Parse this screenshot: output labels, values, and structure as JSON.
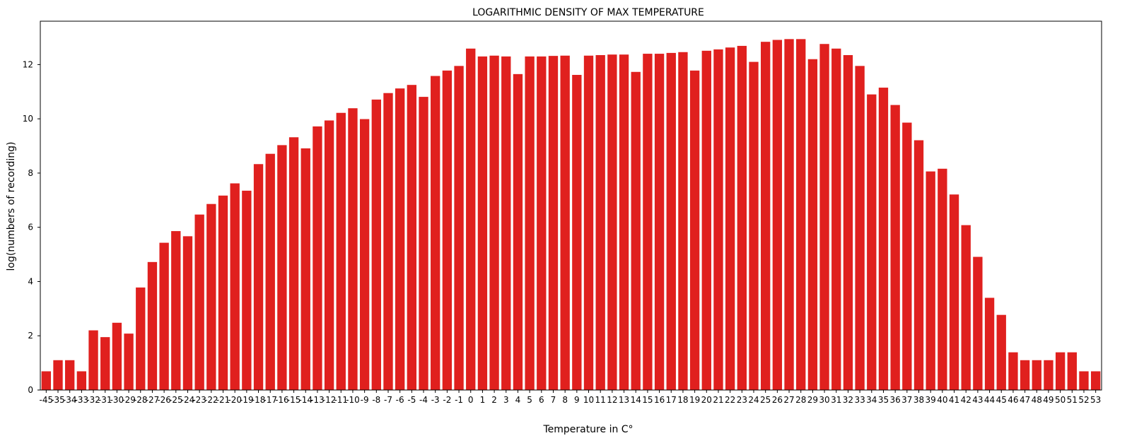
{
  "chart_data": {
    "type": "bar",
    "title": "LOGARITHMIC DENSITY OF MAX TEMPERATURE",
    "xlabel": "Temperature in C°",
    "ylabel": "log(numbers of recording)",
    "ylim": [
      0,
      13.6
    ],
    "yticks": [
      0,
      2,
      4,
      6,
      8,
      10,
      12
    ],
    "grid": false,
    "legend": "none",
    "bar_color": "#e0201e",
    "categories": [
      "-45",
      "-35",
      "-34",
      "-33",
      "-32",
      "-31",
      "-30",
      "-29",
      "-28",
      "-27",
      "-26",
      "-25",
      "-24",
      "-23",
      "-22",
      "-21",
      "-20",
      "-19",
      "-18",
      "-17",
      "-16",
      "-15",
      "-14",
      "-13",
      "-12",
      "-11",
      "-10",
      "-9",
      "-8",
      "-7",
      "-6",
      "-5",
      "-4",
      "-3",
      "-2",
      "-1",
      "0",
      "1",
      "2",
      "3",
      "4",
      "5",
      "6",
      "7",
      "8",
      "9",
      "10",
      "11",
      "12",
      "13",
      "14",
      "15",
      "16",
      "17",
      "18",
      "19",
      "20",
      "21",
      "22",
      "23",
      "24",
      "25",
      "26",
      "27",
      "28",
      "29",
      "30",
      "31",
      "32",
      "33",
      "34",
      "35",
      "36",
      "37",
      "38",
      "39",
      "40",
      "41",
      "42",
      "43",
      "44",
      "45",
      "46",
      "47",
      "48",
      "49",
      "50",
      "51",
      "52",
      "53"
    ],
    "values": [
      0.69,
      1.1,
      1.1,
      0.69,
      2.2,
      1.95,
      2.48,
      2.08,
      3.78,
      4.72,
      5.43,
      5.86,
      5.67,
      6.47,
      6.86,
      7.17,
      7.62,
      7.35,
      8.33,
      8.71,
      9.03,
      9.32,
      8.91,
      9.72,
      9.94,
      10.22,
      10.39,
      9.99,
      10.71,
      10.95,
      11.12,
      11.25,
      10.81,
      11.58,
      11.78,
      11.95,
      12.59,
      12.3,
      12.33,
      12.3,
      11.65,
      12.3,
      12.3,
      12.32,
      12.33,
      11.62,
      12.33,
      12.35,
      12.37,
      12.37,
      11.73,
      12.4,
      12.4,
      12.43,
      12.46,
      11.78,
      12.51,
      12.56,
      12.63,
      12.69,
      12.1,
      12.84,
      12.91,
      12.94,
      12.94,
      12.2,
      12.76,
      12.59,
      12.35,
      11.95,
      10.9,
      11.15,
      10.51,
      9.86,
      9.21,
      8.06,
      8.16,
      7.21,
      6.08,
      4.91,
      3.4,
      2.77,
      1.39,
      1.1,
      1.1,
      1.1,
      1.39,
      1.39,
      0.69,
      0.69
    ]
  }
}
